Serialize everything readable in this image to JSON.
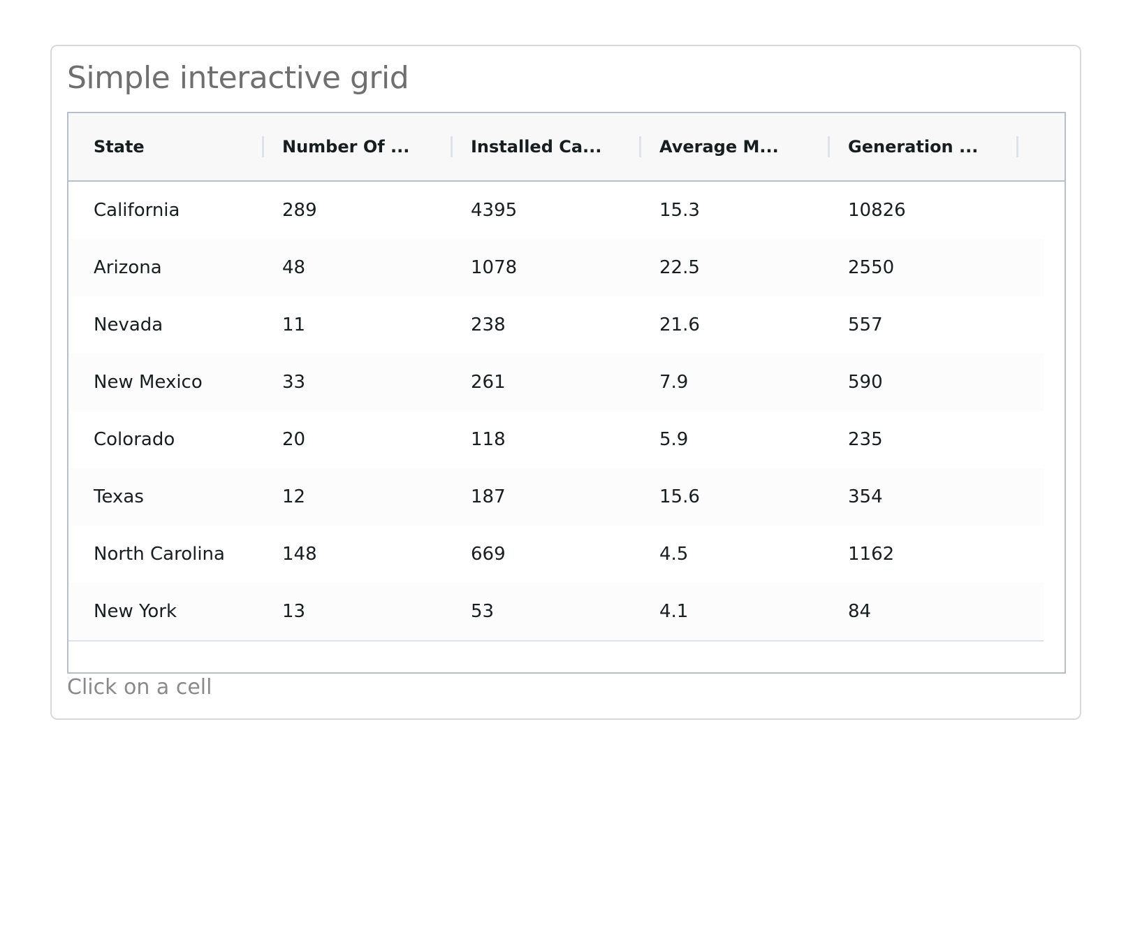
{
  "title": "Simple interactive grid",
  "status": "Click on a cell",
  "grid": {
    "columns": [
      "State",
      "Number Of ...",
      "Installed Ca...",
      "Average M...",
      "Generation ..."
    ],
    "rows": [
      [
        "California",
        "289",
        "4395",
        "15.3",
        "10826"
      ],
      [
        "Arizona",
        "48",
        "1078",
        "22.5",
        "2550"
      ],
      [
        "Nevada",
        "11",
        "238",
        "21.6",
        "557"
      ],
      [
        "New Mexico",
        "33",
        "261",
        "7.9",
        "590"
      ],
      [
        "Colorado",
        "20",
        "118",
        "5.9",
        "235"
      ],
      [
        "Texas",
        "12",
        "187",
        "15.6",
        "354"
      ],
      [
        "North Carolina",
        "148",
        "669",
        "4.5",
        "1162"
      ],
      [
        "New York",
        "13",
        "53",
        "4.1",
        "84"
      ]
    ]
  },
  "colors": {
    "header_bg": "#f8f8f8",
    "border": "#babfc7",
    "row_divider": "#dde2eb",
    "text": "#181d1f",
    "title_text": "#6f6f6f"
  }
}
